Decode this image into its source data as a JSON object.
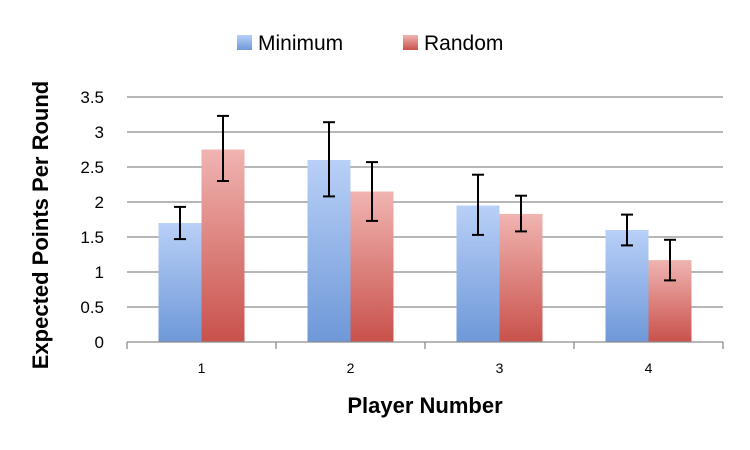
{
  "chart_data": {
    "type": "bar",
    "title": "",
    "xlabel": "Player Number",
    "ylabel": "Expected Points Per Round",
    "categories": [
      "1",
      "2",
      "3",
      "4"
    ],
    "ylim": [
      0,
      3.5
    ],
    "yticks": [
      "0",
      "0.5",
      "1",
      "1.5",
      "2",
      "2.5",
      "3",
      "3.5"
    ],
    "grid": true,
    "legend_position": "top",
    "series": [
      {
        "name": "Minimum",
        "color": "#6e98d8",
        "values": [
          1.7,
          2.6,
          1.95,
          1.6
        ],
        "error_low": [
          1.47,
          2.08,
          1.53,
          1.38
        ],
        "error_high": [
          1.93,
          3.14,
          2.39,
          1.82
        ]
      },
      {
        "name": "Random",
        "color": "#d46f6a",
        "values": [
          2.75,
          2.15,
          1.83,
          1.17
        ],
        "error_low": [
          2.3,
          1.73,
          1.58,
          0.88
        ],
        "error_high": [
          3.23,
          2.57,
          2.09,
          1.46
        ]
      }
    ]
  }
}
